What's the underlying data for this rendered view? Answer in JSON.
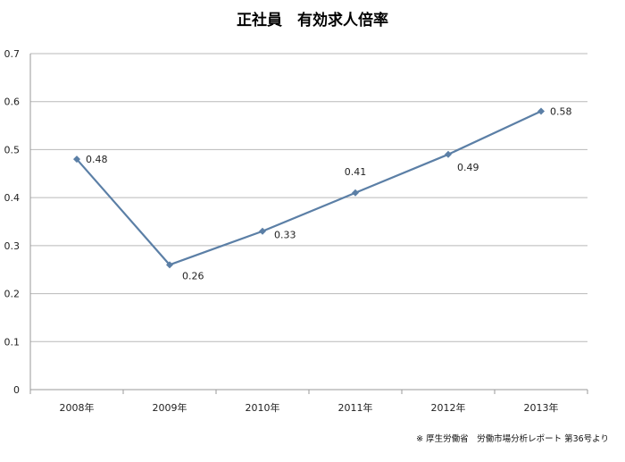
{
  "chart_data": {
    "type": "line",
    "title": "正社員　有効求人倍率",
    "categories": [
      "2008年",
      "2009年",
      "2010年",
      "2011年",
      "2012年",
      "2013年"
    ],
    "series": [
      {
        "values": [
          0.48,
          0.26,
          0.33,
          0.41,
          0.49,
          0.58
        ],
        "color": "#5b7fa6"
      }
    ],
    "data_labels": [
      "0.48",
      "0.26",
      "0.33",
      "0.41",
      "0.49",
      "0.58"
    ],
    "y_ticks": [
      "0",
      "0.1",
      "0.2",
      "0.3",
      "0.4",
      "0.5",
      "0.6",
      "0.7"
    ],
    "ylim": [
      0,
      0.7
    ],
    "grid": true,
    "legend": "none"
  },
  "footer": {
    "source": "※ 厚生労働省　労働市場分析レポート 第36号より"
  }
}
